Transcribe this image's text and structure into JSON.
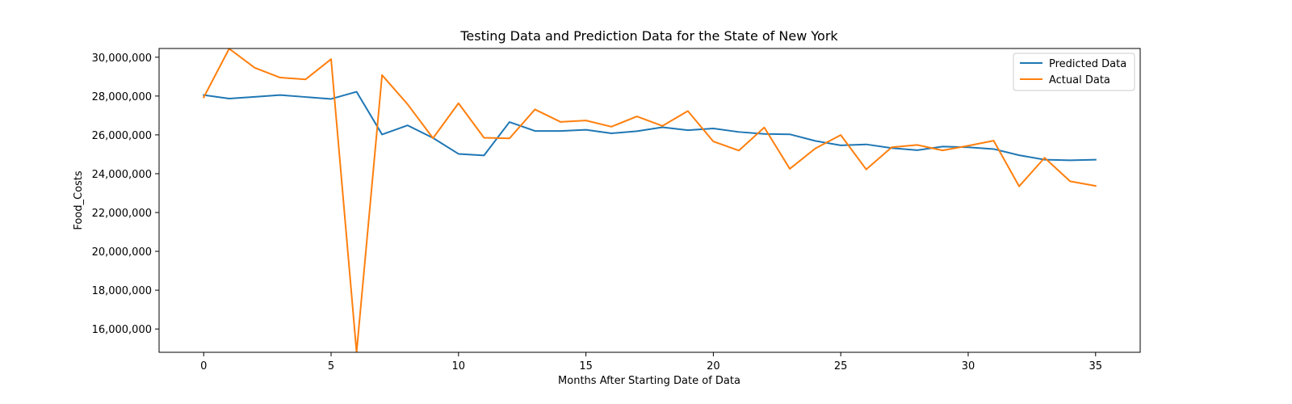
{
  "chart_data": {
    "type": "line",
    "title": "Testing Data and Prediction Data for the State of New York",
    "xlabel": "Months After Starting Date of Data",
    "ylabel": "Food_Costs",
    "xlim": [
      -1.75,
      36.75
    ],
    "ylim": [
      14800000,
      30450000
    ],
    "x_ticks": [
      0,
      5,
      10,
      15,
      20,
      25,
      30,
      35
    ],
    "y_ticks": [
      16000000,
      18000000,
      20000000,
      22000000,
      24000000,
      26000000,
      28000000,
      30000000
    ],
    "y_tick_labels": [
      "16,000,000",
      "18,000,000",
      "20,000,000",
      "22,000,000",
      "24,000,000",
      "26,000,000",
      "28,000,000",
      "30,000,000"
    ],
    "x": [
      0,
      1,
      2,
      3,
      4,
      5,
      6,
      7,
      8,
      9,
      10,
      11,
      12,
      13,
      14,
      15,
      16,
      17,
      18,
      19,
      20,
      21,
      22,
      23,
      24,
      25,
      26,
      27,
      28,
      29,
      30,
      31,
      32,
      33,
      34,
      35
    ],
    "series": [
      {
        "name": "Predicted Data",
        "color": "#1f77b4",
        "values": [
          28050000,
          27870000,
          27960000,
          28050000,
          27950000,
          27850000,
          28220000,
          26020000,
          26490000,
          25840000,
          25020000,
          24940000,
          26660000,
          26200000,
          26200000,
          26260000,
          26080000,
          26190000,
          26390000,
          26240000,
          26330000,
          26150000,
          26050000,
          26030000,
          25690000,
          25460000,
          25510000,
          25320000,
          25210000,
          25400000,
          25360000,
          25270000,
          24950000,
          24720000,
          24690000,
          24720000
        ]
      },
      {
        "name": "Actual Data",
        "color": "#ff7f0e",
        "values": [
          27930000,
          30440000,
          29460000,
          28950000,
          28860000,
          29900000,
          14800000,
          29080000,
          27580000,
          25830000,
          27630000,
          25850000,
          25820000,
          27310000,
          26670000,
          26740000,
          26420000,
          26950000,
          26460000,
          27230000,
          25660000,
          25190000,
          26380000,
          24250000,
          25300000,
          25990000,
          24220000,
          25360000,
          25480000,
          25200000,
          25440000,
          25700000,
          23350000,
          24820000,
          23610000,
          23370000
        ]
      }
    ],
    "legend_position": "upper right",
    "grid": false
  }
}
